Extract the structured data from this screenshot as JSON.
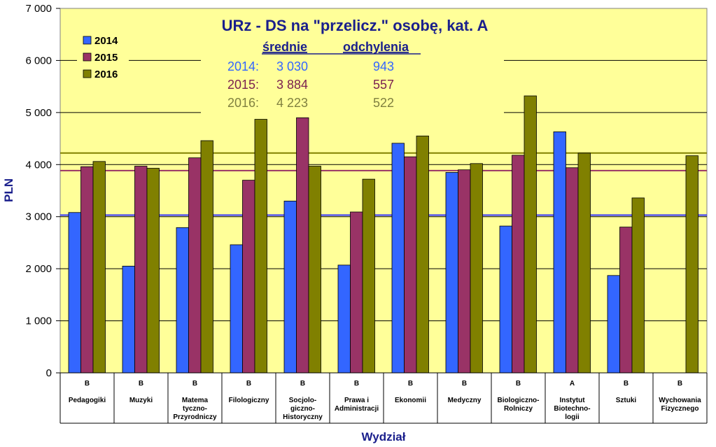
{
  "chart_data": {
    "type": "bar",
    "title": "URz - DS na \"przelicz.\" osobę, kat. A",
    "xlabel": "Wydział",
    "ylabel": "PLN",
    "ylim": [
      0,
      7000
    ],
    "ytick_step": 1000,
    "yticks": [
      "0",
      "1 000",
      "2 000",
      "3 000",
      "4 000",
      "5 000",
      "6 000",
      "7 000"
    ],
    "grid": true,
    "legend_position": "top-left",
    "categories": [
      {
        "group": "B",
        "name": [
          "Pedagogiki"
        ]
      },
      {
        "group": "B",
        "name": [
          "Muzyki"
        ]
      },
      {
        "group": "B",
        "name": [
          "Matema",
          "tyczno-",
          "Przyrodniczy"
        ]
      },
      {
        "group": "B",
        "name": [
          "Filologiczny"
        ]
      },
      {
        "group": "B",
        "name": [
          "Socjolo-",
          "giczno-",
          "Historyczny"
        ]
      },
      {
        "group": "B",
        "name": [
          "Prawa i",
          "Administracji"
        ]
      },
      {
        "group": "B",
        "name": [
          "Ekonomii"
        ]
      },
      {
        "group": "B",
        "name": [
          "Medyczny"
        ]
      },
      {
        "group": "B",
        "name": [
          "Biologiczno-",
          "Rolniczy"
        ]
      },
      {
        "group": "A",
        "name": [
          "Instytut",
          "Biotechno-",
          "logii"
        ]
      },
      {
        "group": "B",
        "name": [
          "Sztuki"
        ]
      },
      {
        "group": "B",
        "name": [
          "Wychowania",
          "Fizycznego"
        ]
      }
    ],
    "series": [
      {
        "name": "2014",
        "color": "#3366ff",
        "values": [
          3080,
          2050,
          2790,
          2460,
          3300,
          2070,
          4410,
          3850,
          2820,
          4630,
          1870,
          null
        ]
      },
      {
        "name": "2015",
        "color": "#993366",
        "values": [
          3960,
          3970,
          4130,
          3700,
          4900,
          3090,
          4150,
          3900,
          4180,
          3940,
          2800,
          null
        ]
      },
      {
        "name": "2016",
        "color": "#808000",
        "values": [
          4060,
          3930,
          4460,
          4870,
          3970,
          3720,
          4550,
          4020,
          5320,
          4220,
          3360,
          4170
        ]
      }
    ],
    "reference_lines": [
      {
        "year": "2014",
        "mean": 3030,
        "color": "#3333ff"
      },
      {
        "year": "2015",
        "mean": 3884,
        "color": "#993366"
      },
      {
        "year": "2016",
        "mean": 4223,
        "color": "#808000"
      }
    ],
    "annotation": {
      "head_mean": "średnie",
      "head_std": "odchylenia",
      "rows": [
        {
          "label": "2014:",
          "mean": "3 030",
          "std": "943",
          "color": "#3366ff"
        },
        {
          "label": "2015:",
          "mean": "3 884",
          "std": "557",
          "color": "#7a1f4f"
        },
        {
          "label": "2016:",
          "mean": "4 223",
          "std": "522",
          "color": "#808040"
        }
      ]
    }
  }
}
